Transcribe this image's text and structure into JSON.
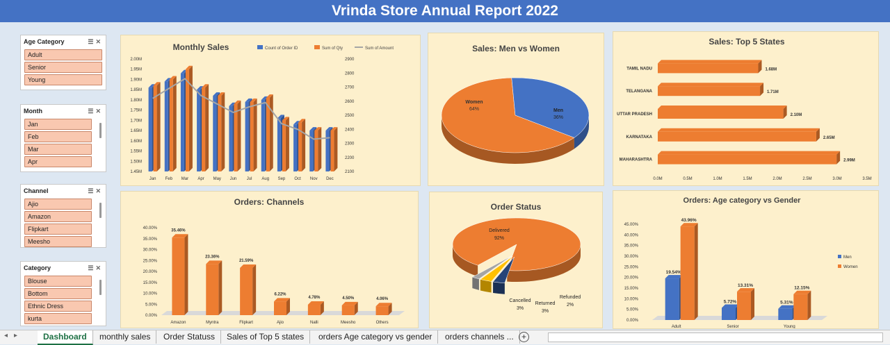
{
  "title": "Vrinda Store Annual Report 2022",
  "slicers": [
    {
      "title": "Age Category",
      "items": [
        "Adult",
        "Senior",
        "Young"
      ]
    },
    {
      "title": "Month",
      "items": [
        "Jan",
        "Feb",
        "Mar",
        "Apr"
      ]
    },
    {
      "title": "Channel",
      "items": [
        "Ajio",
        "Amazon",
        "Flipkart",
        "Meesho"
      ]
    },
    {
      "title": "Category",
      "items": [
        "Blouse",
        "Bottom",
        "Ethnic Dress",
        "kurta"
      ]
    }
  ],
  "colors": {
    "blue": "#4472c4",
    "orange": "#ed7d31",
    "gray": "#a5a5a5",
    "yellow": "#ffc000",
    "dark_blue": "#264478"
  },
  "sheet_tabs": [
    "Dashboard",
    "monthly sales",
    "Order Statuss",
    "Sales of Top 5 states",
    "orders Age category vs gender",
    "orders channels ..."
  ],
  "chart_data": [
    {
      "type": "bar",
      "title": "Monthly Sales",
      "categories": [
        "Jan",
        "Feb",
        "Mar",
        "Apr",
        "May",
        "Jun",
        "Jul",
        "Aug",
        "Sep",
        "Oct",
        "Nov",
        "Dec"
      ],
      "series": [
        {
          "name": "Count of Order ID",
          "axis": "left",
          "values": [
            1.86,
            1.89,
            1.93,
            1.85,
            1.82,
            1.77,
            1.79,
            1.8,
            1.71,
            1.68,
            1.65,
            1.65
          ]
        },
        {
          "name": "Sum of Qty",
          "axis": "left",
          "values": [
            1.87,
            1.9,
            1.95,
            1.86,
            1.82,
            1.78,
            1.79,
            1.81,
            1.7,
            1.69,
            1.65,
            1.65
          ]
        },
        {
          "name": "Sum of Amount",
          "axis": "right",
          "type": "line",
          "values": [
            2620,
            2690,
            2760,
            2640,
            2580,
            2520,
            2560,
            2590,
            2440,
            2400,
            2330,
            2340
          ]
        }
      ],
      "ylim": [
        1.45,
        2.0
      ],
      "y_ticks": [
        "2.00M",
        "1.95M",
        "1.90M",
        "1.85M",
        "1.80M",
        "1.75M",
        "1.70M",
        "1.65M",
        "1.60M",
        "1.55M",
        "1.50M",
        "1.45M"
      ],
      "y2lim": [
        2100,
        2900
      ],
      "y2_ticks": [
        "2900",
        "2800",
        "2700",
        "2600",
        "2500",
        "2400",
        "2300",
        "2200",
        "2100"
      ]
    },
    {
      "type": "pie",
      "title": "Sales: Men vs Women",
      "slices": [
        {
          "label": "Women",
          "pct": "64%",
          "value": 64
        },
        {
          "label": "Men",
          "pct": "36%",
          "value": 36
        }
      ]
    },
    {
      "type": "bar",
      "orientation": "horizontal",
      "title": "Sales: Top 5 States",
      "categories": [
        "TAMIL NADU",
        "TELANGANA",
        "UTTAR PRADESH",
        "KARNATAKA",
        "MAHARASHTRA"
      ],
      "values": [
        1.68,
        1.71,
        2.1,
        2.65,
        2.99
      ],
      "labels": [
        "1.68M",
        "1.71M",
        "2.10M",
        "2.65M",
        "2.99M"
      ],
      "xlim": [
        0,
        3.5
      ],
      "x_ticks": [
        "0.0M",
        "0.5M",
        "1.0M",
        "1.5M",
        "2.0M",
        "2.5M",
        "3.0M",
        "3.5M"
      ]
    },
    {
      "type": "bar",
      "title": "Orders: Channels",
      "categories": [
        "Amazon",
        "Myntra",
        "Flipkart",
        "Ajio",
        "Nalli",
        "Meesho",
        "Others"
      ],
      "values": [
        35.46,
        23.36,
        21.59,
        6.22,
        4.78,
        4.5,
        4.06
      ],
      "labels": [
        "35.46%",
        "23.36%",
        "21.59%",
        "6.22%",
        "4.78%",
        "4.50%",
        "4.06%"
      ],
      "ylim": [
        0,
        40
      ],
      "y_ticks": [
        "40.00%",
        "35.00%",
        "30.00%",
        "25.00%",
        "20.00%",
        "15.00%",
        "10.00%",
        "5.00%",
        "0.00%"
      ]
    },
    {
      "type": "pie",
      "title": "Order Status",
      "slices": [
        {
          "label": "Delivered",
          "pct": "92%",
          "value": 92
        },
        {
          "label": "Cancelled",
          "pct": "3%",
          "value": 3
        },
        {
          "label": "Returned",
          "pct": "3%",
          "value": 3
        },
        {
          "label": "Refunded",
          "pct": "2%",
          "value": 2
        }
      ]
    },
    {
      "type": "bar",
      "title": "Orders: Age category vs Gender",
      "categories": [
        "Adult",
        "Senior",
        "Young"
      ],
      "series": [
        {
          "name": "Men",
          "values": [
            19.54,
            5.72,
            5.31
          ],
          "labels": [
            "19.54%",
            "5.72%",
            "5.31%"
          ]
        },
        {
          "name": "Women",
          "values": [
            43.96,
            13.31,
            12.15
          ],
          "labels": [
            "43.96%",
            "13.31%",
            "12.15%"
          ]
        }
      ],
      "ylim": [
        0,
        45
      ],
      "y_ticks": [
        "45.00%",
        "40.00%",
        "35.00%",
        "30.00%",
        "25.00%",
        "20.00%",
        "15.00%",
        "10.00%",
        "5.00%",
        "0.00%"
      ]
    }
  ]
}
